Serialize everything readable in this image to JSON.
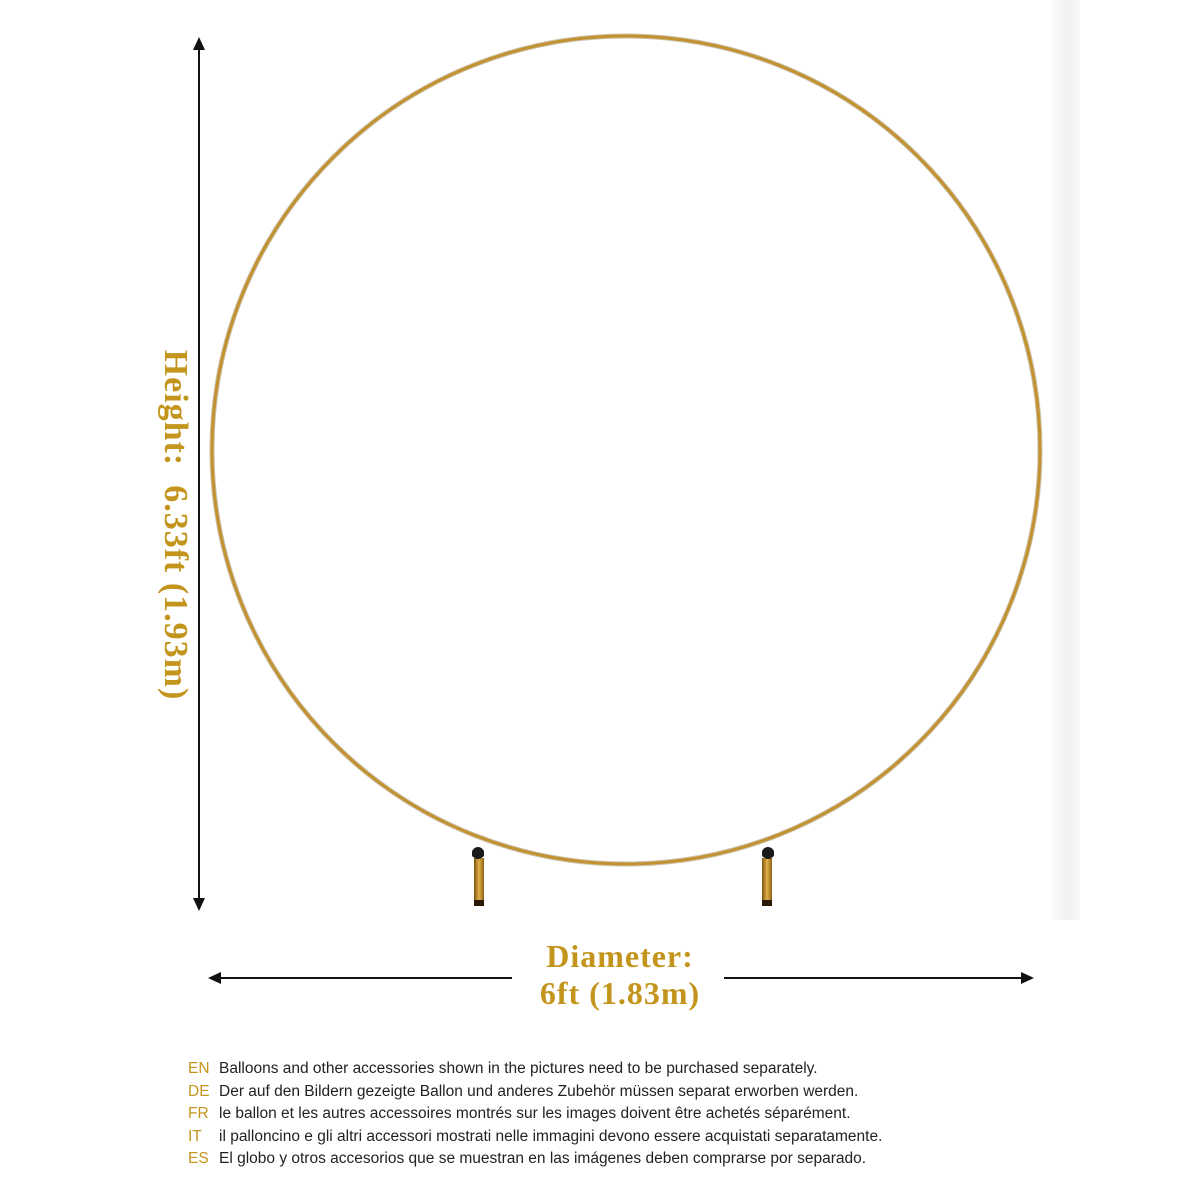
{
  "height_label": "Height:  6.33ft (1.93m)",
  "diameter": {
    "line1": "Diameter:",
    "line2": "6ft (1.83m)"
  },
  "notes": [
    {
      "code": "EN",
      "text": "Balloons and other accessories shown in the pictures need to be purchased separately."
    },
    {
      "code": "DE",
      "text": "Der auf den Bildern gezeigte Ballon und anderes Zubehör müssen separat erworben werden."
    },
    {
      "code": "FR",
      "text": "le ballon et les autres accessoires montrés sur les images doivent être achetés séparément."
    },
    {
      "code": "IT",
      "text": "il palloncino e gli altri accessori mostrati nelle immagini devono essere acquistati separatamente."
    },
    {
      "code": "ES",
      "text": "El globo y otros accesorios que se muestran en las imágenes deben comprarse por separado."
    }
  ],
  "colors": {
    "gold": "#c4951c",
    "ring": "#b88a28",
    "arrow": "#111111"
  },
  "icons": [
    "height-arrow-icon",
    "diameter-arrow-icon",
    "ring-stand-icon"
  ]
}
